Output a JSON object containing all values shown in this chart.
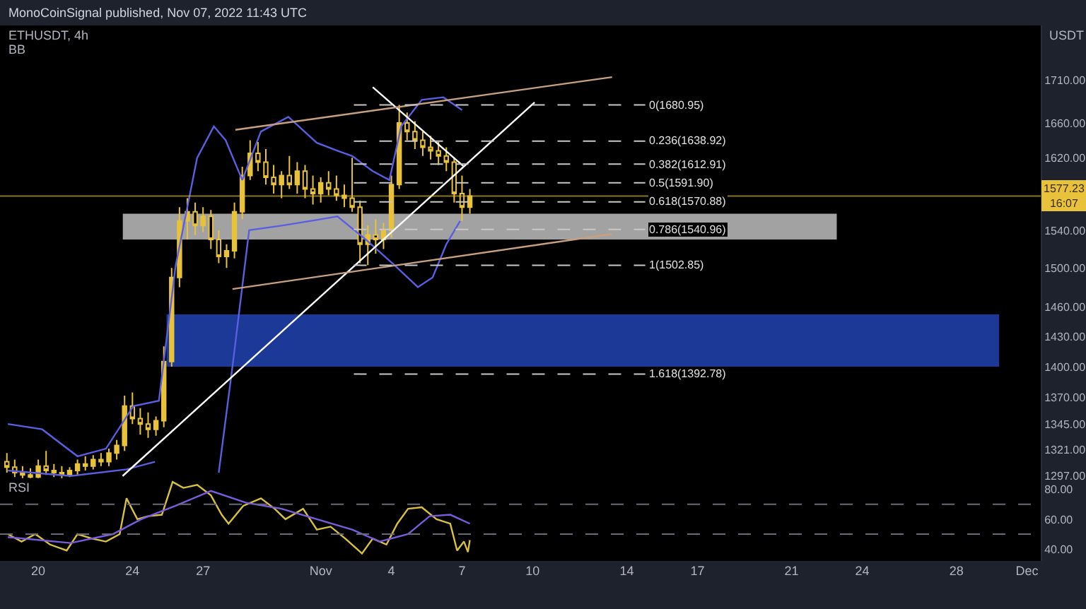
{
  "chart_data": [
    {
      "type": "candlestick",
      "title": "ETHUSDT, 4h",
      "subtitle": "BB",
      "ylabel": "USDT",
      "annotations": [
        "MonoCoinSignal published, Nov 07, 2022 11:43 UTC"
      ],
      "log": true,
      "grid": false,
      "tick_labels": "y",
      "xlim": [
        "2022-10-18T09:00",
        "2022-12-01T14:00"
      ],
      "ylim": [
        1293,
        1777
      ],
      "yticks": [
        {
          "value": 1297,
          "label": "1297.00"
        },
        {
          "value": 1321,
          "label": "1321.00"
        },
        {
          "value": 1345,
          "label": "1345.00"
        },
        {
          "value": 1370,
          "label": "1370.00"
        },
        {
          "value": 1400,
          "label": "1400.00"
        },
        {
          "value": 1430,
          "label": "1430.00"
        },
        {
          "value": 1460,
          "label": "1460.00"
        },
        {
          "value": 1500,
          "label": "1500.00"
        },
        {
          "value": 1540,
          "label": "1540.00"
        },
        {
          "value": 1620,
          "label": "1620.00"
        },
        {
          "value": 1660,
          "label": "1660.00"
        },
        {
          "value": 1710,
          "label": "1710.00"
        }
      ],
      "series": [
        {
          "type": "candlestick",
          "color": "#e8c23a",
          "x": [
            "2022-10-18T16:00",
            "2022-10-19T00:00",
            "2022-10-19T08:00",
            "2022-10-19T16:00",
            "2022-10-20T00:00",
            "2022-10-20T08:00",
            "2022-10-20T16:00",
            "2022-10-21T00:00",
            "2022-10-21T08:00",
            "2022-10-21T16:00",
            "2022-10-22T00:00",
            "2022-10-22T08:00",
            "2022-10-22T16:00",
            "2022-10-23T00:00",
            "2022-10-23T08:00",
            "2022-10-23T16:00",
            "2022-10-24T00:00",
            "2022-10-24T08:00",
            "2022-10-24T16:00",
            "2022-10-25T00:00",
            "2022-10-25T08:00",
            "2022-10-25T16:00",
            "2022-10-26T00:00",
            "2022-10-26T08:00",
            "2022-10-26T16:00",
            "2022-10-27T00:00",
            "2022-10-27T08:00",
            "2022-10-27T16:00",
            "2022-10-28T00:00",
            "2022-10-28T08:00",
            "2022-10-28T16:00",
            "2022-10-29T00:00",
            "2022-10-29T08:00",
            "2022-10-29T16:00",
            "2022-10-30T00:00",
            "2022-10-30T08:00",
            "2022-10-30T16:00",
            "2022-10-31T00:00",
            "2022-10-31T08:00",
            "2022-10-31T16:00",
            "2022-11-01T00:00",
            "2022-11-01T08:00",
            "2022-11-01T16:00",
            "2022-11-02T00:00",
            "2022-11-02T08:00",
            "2022-11-02T16:00",
            "2022-11-03T00:00",
            "2022-11-03T08:00",
            "2022-11-03T16:00",
            "2022-11-04T00:00",
            "2022-11-04T08:00",
            "2022-11-04T16:00",
            "2022-11-05T00:00",
            "2022-11-05T08:00",
            "2022-11-05T16:00",
            "2022-11-06T00:00",
            "2022-11-06T08:00",
            "2022-11-06T16:00",
            "2022-11-07T00:00",
            "2022-11-07T08:00"
          ],
          "ohlc": [
            [
              1310,
              1318,
              1300,
              1305
            ],
            [
              1305,
              1312,
              1296,
              1300
            ],
            [
              1300,
              1306,
              1295,
              1298
            ],
            [
              1298,
              1304,
              1295,
              1296
            ],
            [
              1296,
              1312,
              1295,
              1306
            ],
            [
              1306,
              1320,
              1298,
              1302
            ],
            [
              1302,
              1308,
              1296,
              1300
            ],
            [
              1300,
              1306,
              1295,
              1298
            ],
            [
              1298,
              1305,
              1296,
              1302
            ],
            [
              1302,
              1312,
              1298,
              1308
            ],
            [
              1308,
              1315,
              1302,
              1306
            ],
            [
              1306,
              1316,
              1303,
              1312
            ],
            [
              1312,
              1318,
              1306,
              1310
            ],
            [
              1310,
              1322,
              1306,
              1318
            ],
            [
              1318,
              1330,
              1312,
              1325
            ],
            [
              1325,
              1372,
              1320,
              1362
            ],
            [
              1362,
              1375,
              1345,
              1350
            ],
            [
              1350,
              1360,
              1335,
              1345
            ],
            [
              1345,
              1356,
              1332,
              1340
            ],
            [
              1340,
              1352,
              1334,
              1348
            ],
            [
              1348,
              1420,
              1342,
              1405
            ],
            [
              1405,
              1500,
              1400,
              1490
            ],
            [
              1490,
              1565,
              1480,
              1550
            ],
            [
              1550,
              1575,
              1530,
              1560
            ],
            [
              1560,
              1570,
              1535,
              1545
            ],
            [
              1545,
              1565,
              1538,
              1555
            ],
            [
              1555,
              1562,
              1520,
              1530
            ],
            [
              1530,
              1540,
              1505,
              1512
            ],
            [
              1512,
              1525,
              1500,
              1518
            ],
            [
              1518,
              1570,
              1510,
              1560
            ],
            [
              1560,
              1610,
              1552,
              1600
            ],
            [
              1600,
              1640,
              1595,
              1625
            ],
            [
              1625,
              1638,
              1605,
              1615
            ],
            [
              1615,
              1630,
              1590,
              1598
            ],
            [
              1598,
              1612,
              1580,
              1590
            ],
            [
              1590,
              1605,
              1575,
              1600
            ],
            [
              1600,
              1622,
              1585,
              1590
            ],
            [
              1590,
              1615,
              1580,
              1605
            ],
            [
              1605,
              1612,
              1575,
              1585
            ],
            [
              1585,
              1600,
              1568,
              1580
            ],
            [
              1580,
              1598,
              1570,
              1592
            ],
            [
              1592,
              1605,
              1578,
              1585
            ],
            [
              1585,
              1600,
              1572,
              1578
            ],
            [
              1578,
              1590,
              1565,
              1575
            ],
            [
              1575,
              1620,
              1560,
              1565
            ],
            [
              1565,
              1572,
              1505,
              1525
            ],
            [
              1525,
              1545,
              1503,
              1535
            ],
            [
              1535,
              1552,
              1515,
              1530
            ],
            [
              1530,
              1548,
              1520,
              1540
            ],
            [
              1540,
              1600,
              1532,
              1590
            ],
            [
              1590,
              1681,
              1585,
              1660
            ],
            [
              1660,
              1672,
              1640,
              1650
            ],
            [
              1650,
              1662,
              1630,
              1640
            ],
            [
              1640,
              1650,
              1622,
              1632
            ],
            [
              1632,
              1645,
              1618,
              1628
            ],
            [
              1628,
              1638,
              1612,
              1622
            ],
            [
              1622,
              1632,
              1605,
              1615
            ],
            [
              1615,
              1620,
              1570,
              1580
            ],
            [
              1580,
              1600,
              1550,
              1565
            ],
            [
              1565,
              1585,
              1558,
              1577.23
            ]
          ]
        },
        {
          "type": "line",
          "color": "#5a5ee0",
          "x": [
            "2022-10-18T17:00",
            "2022-10-20T04:00",
            "2022-10-21T16:00",
            "2022-10-22T21:00",
            "2022-10-24T01:00",
            "2022-10-25T03:00",
            "2022-10-25T20:00",
            "2022-10-26T18:00",
            "2022-10-27T11:00",
            "2022-10-27T23:00",
            "2022-10-28T16:00",
            "2022-10-29T11:00",
            "2022-10-30T15:00",
            "2022-10-31T20:00",
            "2022-11-01T17:00",
            "2022-11-02T08:00",
            "2022-11-03T05:00",
            "2022-11-03T22:00",
            "2022-11-04T10:00",
            "2022-11-05T07:00",
            "2022-11-06T05:00",
            "2022-11-07T00:00"
          ],
          "values": [
            1345,
            1340,
            1315,
            1322,
            1362,
            1367,
            1502,
            1620,
            1656,
            1640,
            1595,
            1650,
            1667,
            1637,
            1628,
            1622,
            1605,
            1595,
            1656,
            1687,
            1690,
            1675
          ]
        },
        {
          "type": "line",
          "color": "#5a5ee0",
          "x": [
            "2022-10-18T17:00",
            "2022-10-21T09:00",
            "2022-10-23T18:00",
            "2022-10-24T23:00",
            "2022-10-25T20:00",
            "2022-10-27T16:00",
            "2022-10-28T06:00",
            "2022-10-28T23:00",
            "2022-10-30T08:00",
            "2022-10-31T13:00",
            "2022-11-01T17:00",
            "2022-11-02T22:00",
            "2022-11-04T03:00",
            "2022-11-05T03:00",
            "2022-11-05T18:00",
            "2022-11-06T08:00",
            "2022-11-06T22:00"
          ],
          "values": [
            1302,
            1297,
            1303,
            1310,
            null,
            1300,
            1400,
            1540,
            1545,
            1550,
            1555,
            1530,
            1503,
            1480,
            1490,
            1525,
            1550
          ]
        },
        {
          "type": "line",
          "color": "#ffffff",
          "x": [
            "2022-10-23T14:00",
            "2022-11-10T02:00"
          ],
          "values": [
            1297,
            1684
          ]
        },
        {
          "type": "line",
          "color": "#ffffff",
          "x": [
            "2022-11-03T05:00",
            "2022-11-07T02:00"
          ],
          "values": [
            1702,
            1610
          ]
        },
        {
          "type": "line",
          "color": "#c8a080",
          "x": [
            "2022-10-28T09:00",
            "2022-11-13T09:00"
          ],
          "values": [
            1652,
            1714
          ]
        },
        {
          "type": "line",
          "color": "#c8a080",
          "x": [
            "2022-10-28T06:00",
            "2022-11-13T09:00"
          ],
          "values": [
            1478,
            1536
          ]
        }
      ],
      "bands": [
        {
          "axis": "y",
          "from": 1530,
          "to": 1558,
          "color": "#b4b4b4"
        },
        {
          "axis": "y",
          "from": 1400,
          "to": 1452,
          "color": "#1f3fa8"
        }
      ],
      "ref_lines": [
        {
          "axis": "y",
          "value": 1680.95,
          "label": "0(1680.95)",
          "line_style": "dashed",
          "color": "#c8c8c8"
        },
        {
          "axis": "y",
          "value": 1638.92,
          "label": "0.236(1638.92)",
          "line_style": "dashed",
          "color": "#c8c8c8"
        },
        {
          "axis": "y",
          "value": 1612.91,
          "label": "0.382(1612.91)",
          "line_style": "dashed",
          "color": "#c8c8c8"
        },
        {
          "axis": "y",
          "value": 1591.9,
          "label": "0.5(1591.90)",
          "line_style": "dashed",
          "color": "#c8c8c8"
        },
        {
          "axis": "y",
          "value": 1570.88,
          "label": "0.618(1570.88)",
          "line_style": "dashed",
          "color": "#c8c8c8"
        },
        {
          "axis": "y",
          "value": 1540.96,
          "label": "0.786(1540.96)",
          "line_style": "dashed",
          "color": "#c8c8c8"
        },
        {
          "axis": "y",
          "value": 1502.85,
          "label": "1(1502.85)",
          "line_style": "dashed",
          "color": "#c8c8c8"
        },
        {
          "axis": "y",
          "value": 1392.78,
          "label": "1.618(1392.78)",
          "line_style": "dashed",
          "color": "#c8c8c8"
        },
        {
          "axis": "y",
          "value": 1577.23,
          "label": "1577.23\n16:07",
          "line_style": "solid",
          "color": "#e8c23a"
        }
      ]
    },
    {
      "type": "line",
      "title": "RSI",
      "grid": false,
      "xlim": [
        "2022-10-18T09:00",
        "2022-12-01T14:00"
      ],
      "xticks": [
        {
          "value": "2022-10-20",
          "label": "20"
        },
        {
          "value": "2022-10-24",
          "label": "24"
        },
        {
          "value": "2022-10-27",
          "label": "27"
        },
        {
          "value": "2022-11-01",
          "label": "Nov"
        },
        {
          "value": "2022-11-04",
          "label": "4"
        },
        {
          "value": "2022-11-07",
          "label": "7"
        },
        {
          "value": "2022-11-10",
          "label": "10"
        },
        {
          "value": "2022-11-14",
          "label": "14"
        },
        {
          "value": "2022-11-17",
          "label": "17"
        },
        {
          "value": "2022-11-21",
          "label": "21"
        },
        {
          "value": "2022-11-24",
          "label": "24"
        },
        {
          "value": "2022-11-28",
          "label": "28"
        },
        {
          "value": "2022-12-01",
          "label": "Dec"
        }
      ],
      "ylim": [
        32,
        86
      ],
      "yticks": [
        {
          "value": 40,
          "label": "40.00"
        },
        {
          "value": 60,
          "label": "60.00"
        },
        {
          "value": 80,
          "label": "80.00"
        }
      ],
      "series": [
        {
          "color": "#d8c040",
          "x": [
            "2022-10-18T17:00",
            "2022-10-19T07:00",
            "2022-10-19T21:00",
            "2022-10-20T12:00",
            "2022-10-21T05:00",
            "2022-10-21T16:00",
            "2022-10-22T07:00",
            "2022-10-22T21:00",
            "2022-10-23T11:00",
            "2022-10-23T18:00",
            "2022-10-24T05:00",
            "2022-10-24T16:00",
            "2022-10-25T06:00",
            "2022-10-25T17:00",
            "2022-10-26T04:00",
            "2022-10-26T18:00",
            "2022-10-27T08:00",
            "2022-10-27T19:00",
            "2022-10-28T02:00",
            "2022-10-28T17:00",
            "2022-10-29T11:00",
            "2022-10-30T01:00",
            "2022-10-30T12:00",
            "2022-10-31T06:00",
            "2022-10-31T20:00",
            "2022-11-01T10:00",
            "2022-11-02T01:00",
            "2022-11-02T18:00",
            "2022-11-03T05:00",
            "2022-11-03T19:00",
            "2022-11-04T06:00",
            "2022-11-04T17:00",
            "2022-11-05T07:00",
            "2022-11-05T22:00",
            "2022-11-06T12:00",
            "2022-11-06T19:00",
            "2022-11-07T02:00",
            "2022-11-07T06:00",
            "2022-11-07T08:00"
          ],
          "values": [
            50,
            45,
            50,
            43,
            39,
            50,
            47,
            45,
            50,
            74,
            60,
            62,
            63,
            85,
            81,
            83,
            76,
            63,
            57,
            69,
            74,
            67,
            60,
            67,
            53,
            55,
            47,
            37,
            47,
            43,
            57,
            67,
            68,
            60,
            57,
            39,
            45,
            38,
            46
          ]
        },
        {
          "color": "#7a5ce0",
          "x": [
            "2022-10-18T17:00",
            "2022-10-21T09:00",
            "2022-10-23T04:00",
            "2022-10-24T09:00",
            "2022-10-25T20:00",
            "2022-10-27T08:00",
            "2022-10-28T20:00",
            "2022-10-30T08:00",
            "2022-10-31T20:00",
            "2022-11-02T08:00",
            "2022-11-03T12:00",
            "2022-11-04T17:00",
            "2022-11-05T15:00",
            "2022-11-06T12:00",
            "2022-11-07T08:00"
          ],
          "values": [
            48,
            44,
            50,
            60,
            69,
            79,
            71,
            67,
            60,
            53,
            45,
            50,
            62,
            63,
            57
          ]
        }
      ],
      "ref_lines": [
        {
          "axis": "y",
          "value": 70,
          "line_style": "dashed",
          "color": "#6a6a78"
        },
        {
          "axis": "y",
          "value": 50,
          "line_style": "dashed",
          "color": "#6a6a78"
        }
      ]
    }
  ]
}
